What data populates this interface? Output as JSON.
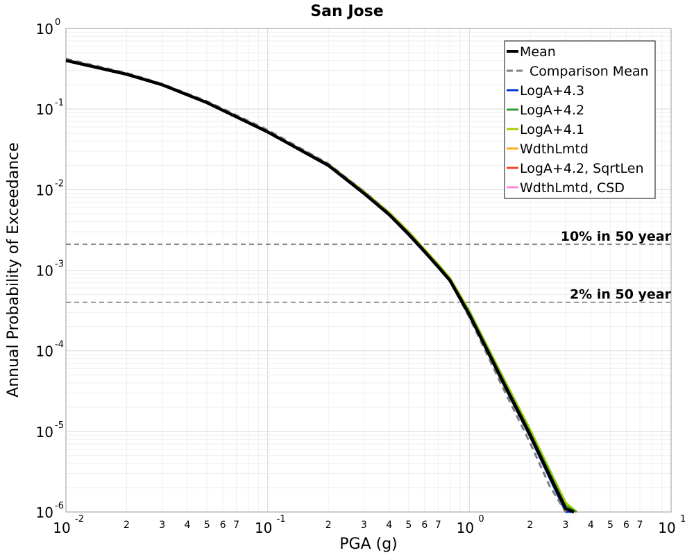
{
  "chart_data": {
    "type": "line",
    "title": "San Jose",
    "xlabel": "PGA (g)",
    "ylabel": "Annual Probability of Exceedance",
    "xscale": "log",
    "yscale": "log",
    "xlim": [
      0.01,
      10
    ],
    "ylim": [
      1e-06,
      1
    ],
    "grid": true,
    "legend_position": "top-right",
    "x_major_ticks": [
      {
        "base": "10",
        "exp": "-2",
        "value": 0.01
      },
      {
        "base": "10",
        "exp": "-1",
        "value": 0.1
      },
      {
        "base": "10",
        "exp": "0",
        "value": 1
      },
      {
        "base": "10",
        "exp": "1",
        "value": 10
      }
    ],
    "y_major_ticks": [
      {
        "base": "10",
        "exp": "0",
        "value": 1
      },
      {
        "base": "10",
        "exp": "-1",
        "value": 0.1
      },
      {
        "base": "10",
        "exp": "-2",
        "value": 0.01
      },
      {
        "base": "10",
        "exp": "-3",
        "value": 0.001
      },
      {
        "base": "10",
        "exp": "-4",
        "value": 0.0001
      },
      {
        "base": "10",
        "exp": "-5",
        "value": 1e-05
      },
      {
        "base": "10",
        "exp": "-6",
        "value": 1e-06
      }
    ],
    "x_minor_tick_labels": [
      "2",
      "3",
      "4",
      "5",
      "6",
      "7"
    ],
    "reference_lines": [
      {
        "label": "10% in 50 year",
        "y": 0.0021
      },
      {
        "label": "2% in 50 year",
        "y": 0.0004
      }
    ],
    "series": [
      {
        "name": "Mean",
        "color": "#000000",
        "style": "solid",
        "x": [
          0.01,
          0.02,
          0.03,
          0.05,
          0.1,
          0.2,
          0.3,
          0.4,
          0.5,
          0.6,
          0.7,
          0.8,
          1.0,
          1.5,
          2.0,
          2.5,
          3.0,
          3.3
        ],
        "y": [
          0.4,
          0.27,
          0.2,
          0.12,
          0.052,
          0.02,
          0.009,
          0.0049,
          0.0028,
          0.0017,
          0.0011,
          0.00075,
          0.00028,
          3.7e-05,
          9e-06,
          2.8e-06,
          1.1e-06,
          6.2e-07
        ]
      },
      {
        "name": "Comparison Mean",
        "color": "#808080",
        "style": "dashed",
        "x": [
          0.01,
          0.02,
          0.03,
          0.05,
          0.1,
          0.2,
          0.3,
          0.4,
          0.5,
          0.6,
          0.7,
          0.8,
          1.0,
          1.5,
          2.0,
          2.5,
          3.0
        ],
        "y": [
          0.42,
          0.28,
          0.205,
          0.125,
          0.055,
          0.021,
          0.0095,
          0.0051,
          0.0029,
          0.00175,
          0.00112,
          0.00074,
          0.00026,
          3.1e-05,
          7.2e-06,
          2.1e-06,
          8e-07
        ]
      },
      {
        "name": "LogA+4.3",
        "color": "#0033cc",
        "style": "solid",
        "x": [
          0.01,
          0.02,
          0.03,
          0.05,
          0.1,
          0.2,
          0.3,
          0.4,
          0.5,
          0.6,
          0.7,
          0.8,
          1.0,
          1.5,
          2.0,
          2.5,
          3.0,
          3.3
        ],
        "y": [
          0.4,
          0.27,
          0.2,
          0.12,
          0.051,
          0.0195,
          0.0088,
          0.0048,
          0.0027,
          0.00165,
          0.00108,
          0.00073,
          0.00027,
          3.5e-05,
          8.5e-06,
          2.6e-06,
          1e-06,
          6e-07
        ]
      },
      {
        "name": "LogA+4.2",
        "color": "#339933",
        "style": "solid",
        "x": [
          0.01,
          0.02,
          0.03,
          0.05,
          0.1,
          0.2,
          0.3,
          0.4,
          0.5,
          0.6,
          0.7,
          0.8,
          1.0,
          1.5,
          2.0,
          2.5,
          3.0,
          3.4
        ],
        "y": [
          0.4,
          0.27,
          0.2,
          0.12,
          0.052,
          0.02,
          0.0092,
          0.005,
          0.0029,
          0.00175,
          0.00115,
          0.00078,
          0.0003,
          4e-05,
          9.8e-06,
          3.1e-06,
          1.2e-06,
          6e-07
        ]
      },
      {
        "name": "LogA+4.1",
        "color": "#aacc00",
        "style": "solid",
        "x": [
          0.01,
          0.02,
          0.03,
          0.05,
          0.1,
          0.2,
          0.3,
          0.4,
          0.5,
          0.6,
          0.7,
          0.8,
          1.0,
          1.5,
          2.0,
          2.5,
          3.0,
          3.4
        ],
        "y": [
          0.4,
          0.27,
          0.2,
          0.12,
          0.052,
          0.0205,
          0.0095,
          0.0052,
          0.003,
          0.0018,
          0.00118,
          0.0008,
          0.00031,
          4.2e-05,
          1.05e-05,
          3.3e-06,
          1.3e-06,
          6.5e-07
        ]
      },
      {
        "name": "WdthLmtd",
        "color": "#ffaa22",
        "style": "solid",
        "x": [
          0.01,
          0.02,
          0.03,
          0.05,
          0.1,
          0.2,
          0.3,
          0.4,
          0.5,
          0.6,
          0.7,
          0.8,
          1.0,
          1.5,
          2.0,
          2.5,
          3.0,
          3.3
        ],
        "y": [
          0.4,
          0.27,
          0.2,
          0.12,
          0.0515,
          0.0198,
          0.009,
          0.0049,
          0.0028,
          0.0017,
          0.0011,
          0.00075,
          0.00028,
          3.7e-05,
          9e-06,
          2.8e-06,
          1.1e-06,
          6.2e-07
        ]
      },
      {
        "name": "LogA+4.2, SqrtLen",
        "color": "#ee4422",
        "style": "solid",
        "x": [
          0.01,
          0.02,
          0.03,
          0.05,
          0.1,
          0.2,
          0.3,
          0.4,
          0.5,
          0.6,
          0.7,
          0.8,
          1.0,
          1.5,
          2.0,
          2.5,
          3.0,
          3.3
        ],
        "y": [
          0.4,
          0.27,
          0.2,
          0.12,
          0.052,
          0.02,
          0.009,
          0.0049,
          0.0028,
          0.0017,
          0.0011,
          0.00075,
          0.00028,
          3.7e-05,
          9e-06,
          2.8e-06,
          1.1e-06,
          6.2e-07
        ]
      },
      {
        "name": "WdthLmtd, CSD",
        "color": "#ff88dd",
        "style": "solid",
        "x": [
          0.01,
          0.02,
          0.03,
          0.05,
          0.1,
          0.2,
          0.3,
          0.4,
          0.5,
          0.6,
          0.7,
          0.8,
          1.0,
          1.5,
          2.0,
          2.5,
          3.0,
          3.3
        ],
        "y": [
          0.4,
          0.27,
          0.2,
          0.12,
          0.052,
          0.02,
          0.009,
          0.0049,
          0.0028,
          0.0017,
          0.0011,
          0.00075,
          0.00028,
          3.7e-05,
          9e-06,
          2.8e-06,
          1.1e-06,
          6.2e-07
        ]
      }
    ]
  }
}
